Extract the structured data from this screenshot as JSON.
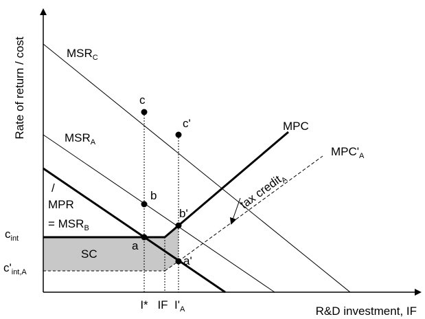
{
  "axes": {
    "y_label": "Rate of return / cost",
    "x_label": "R&D investment, IF"
  },
  "curves": {
    "msr_c": {
      "main": "MSR",
      "sub": "C"
    },
    "msr_a": {
      "main": "MSR",
      "sub": "A"
    },
    "mpc": {
      "main": "MPC"
    },
    "mpc_prime_a": {
      "main": "MPC'",
      "sub": "A"
    },
    "mpr_slash": "/",
    "mpr": "MPR",
    "msr_b": {
      "main": "= MSR",
      "sub": "B"
    }
  },
  "levels": {
    "c_int": {
      "main": "c",
      "sub": "int"
    },
    "c_int_a": {
      "main": "c'",
      "sub": "int,A"
    }
  },
  "points": {
    "c": "c",
    "c_prime": "c'",
    "b": "b",
    "b_prime": "b'",
    "a": "a",
    "a_prime": "a'"
  },
  "area_label": "SC",
  "tax_credit": {
    "main": "tax credit",
    "sub": "A"
  },
  "x_ticks": {
    "i_star": "I*",
    "if": "IF",
    "i_prime_a": {
      "main": "I'",
      "sub": "A"
    }
  },
  "colors": {
    "shade": "#c8c8c8",
    "line": "#000000"
  }
}
